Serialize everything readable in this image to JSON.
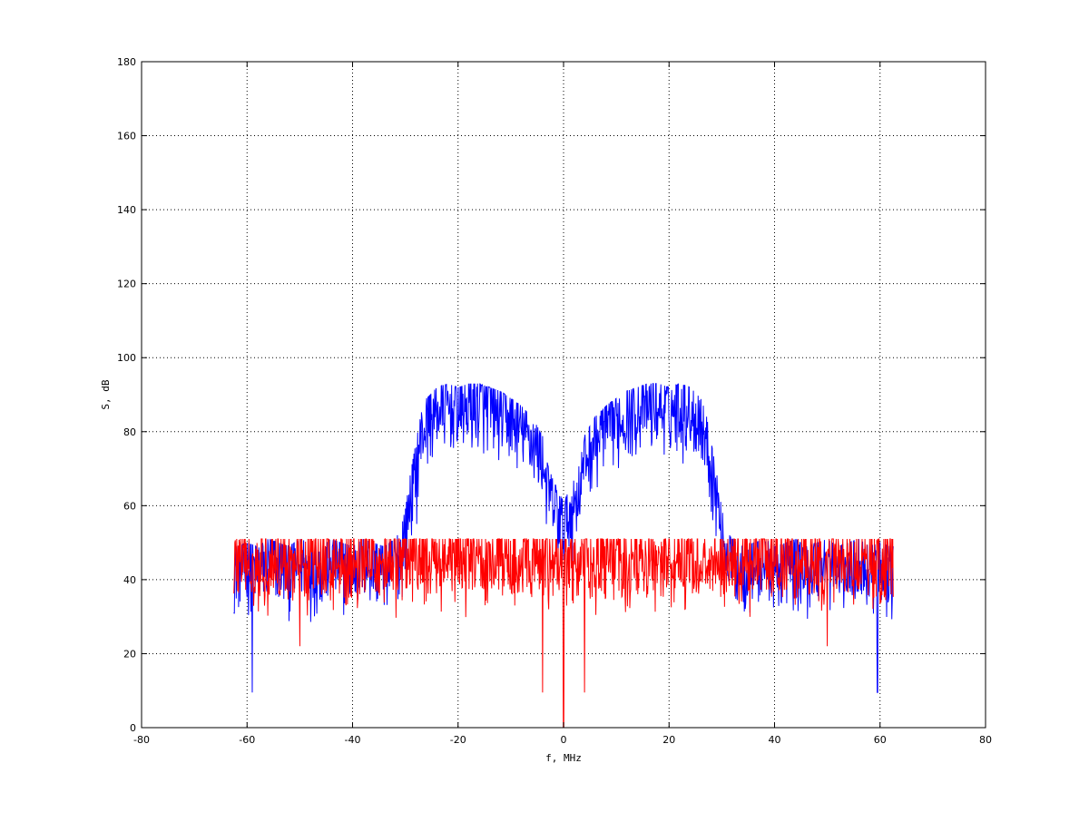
{
  "chart_data": {
    "type": "line",
    "title": "",
    "xlabel": "f, MHz",
    "ylabel": "S, dB",
    "xlim": [
      -80,
      80
    ],
    "ylim": [
      0,
      180
    ],
    "xticks": [
      -80,
      -60,
      -40,
      -20,
      0,
      20,
      40,
      60,
      80
    ],
    "yticks": [
      0,
      20,
      40,
      60,
      80,
      100,
      120,
      140,
      160,
      180
    ],
    "grid": true,
    "x_range": [
      -62.5,
      62.5
    ],
    "series": [
      {
        "color": "#0000ff",
        "x": [
          -62,
          -60,
          -58,
          -56,
          -54,
          -52,
          -50,
          -48,
          -46,
          -44,
          -42,
          -40,
          -38,
          -36,
          -34,
          -32,
          -31,
          -30,
          -29,
          -28,
          -27,
          -26,
          -24,
          -22,
          -20,
          -18,
          -16,
          -14,
          -12,
          -10,
          -8,
          -6,
          -4,
          -3,
          -2,
          -1,
          0,
          1,
          2,
          3,
          4,
          6,
          8,
          10,
          12,
          14,
          16,
          18,
          20,
          22,
          24,
          26,
          27,
          28,
          29,
          30,
          31,
          32,
          34,
          36,
          38,
          40,
          42,
          44,
          46,
          48,
          50,
          52,
          54,
          56,
          58,
          60,
          62
        ],
        "y": [
          40,
          41,
          40,
          42,
          41,
          40,
          42,
          41,
          40,
          42,
          41,
          40,
          42,
          41,
          40,
          42,
          44,
          50,
          60,
          68,
          76,
          80,
          83,
          84,
          83,
          84,
          84,
          83,
          82,
          80,
          78,
          75,
          70,
          62,
          58,
          55,
          52,
          55,
          58,
          62,
          70,
          75,
          78,
          80,
          82,
          83,
          84,
          84,
          83,
          84,
          83,
          80,
          76,
          68,
          60,
          50,
          44,
          42,
          40,
          41,
          42,
          40,
          41,
          42,
          40,
          41,
          42,
          40,
          41,
          42,
          40,
          41,
          40
        ],
        "points": 1400,
        "noise_spread": 9,
        "deep_nulls": [
          {
            "x": -59,
            "y": 9.5
          },
          {
            "x": 59.5,
            "y": 9.5
          },
          {
            "x": -1,
            "y": 48
          },
          {
            "x": 1,
            "y": 49
          }
        ]
      },
      {
        "color": "#ff0000",
        "x": [
          -62,
          0,
          62
        ],
        "y": [
          42,
          42,
          42
        ],
        "points": 1400,
        "noise_spread": 9,
        "deep_nulls": [
          {
            "x": 0,
            "y": 0
          },
          {
            "x": -4,
            "y": 9.5
          },
          {
            "x": 4,
            "y": 9.5
          },
          {
            "x": -50,
            "y": 22
          },
          {
            "x": 50,
            "y": 22
          }
        ]
      }
    ]
  }
}
